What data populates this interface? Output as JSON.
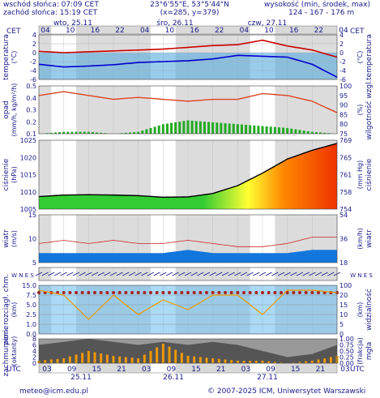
{
  "header": {
    "sunrise": "wschód słońca: 07:09 CET",
    "sunset": "zachód słońca: 15:19 CET",
    "coords": "23°6'55\"E, 53°5'44\"N",
    "grid": "(x=285, y=379)",
    "heights_label": "wysokość (min, środek, max)",
    "heights": "124 - 167 - 176 m"
  },
  "timezone_top": "CET",
  "timezone_top_right": "CET",
  "timezone_bottom": "UTC",
  "timezone_bottom_right": "UTC",
  "days_top": [
    "wto, 25.11",
    "śro, 26.11",
    "czw, 27.11"
  ],
  "hours_top": [
    "04",
    "10",
    "16",
    "22",
    "04",
    "10",
    "16",
    "22",
    "04",
    "10",
    "16",
    "22",
    "04"
  ],
  "hours_bottom": [
    "03",
    "09",
    "15",
    "21",
    "03",
    "09",
    "15",
    "21",
    "03",
    "09",
    "15",
    "21",
    "03"
  ],
  "days_bottom": [
    "25.11",
    "26.11",
    "27.11"
  ],
  "panels": {
    "temperature": {
      "left_label": "temperatura",
      "left_unit": "(°C)",
      "right_label": "temperatura",
      "right_unit": "(°C)",
      "left_ticks": [
        "4",
        "2",
        "0",
        "-2",
        "-4",
        "-6"
      ],
      "right_ticks": [
        "4",
        "2",
        "0",
        "-2",
        "-4",
        "-6"
      ]
    },
    "precipitation": {
      "left_label": "opad",
      "left_unit": "(mm/h, kg/m²/h)",
      "right_label": "wilgotność wzgl.",
      "right_unit": "(%)",
      "left_ticks": [
        "0.5",
        "0.4",
        "0.3",
        "0.2",
        "0.1"
      ],
      "right_ticks": [
        "100",
        "95",
        "90",
        "85",
        "80",
        "75"
      ]
    },
    "pressure": {
      "left_label": "ciśnienie",
      "left_unit": "(hPa)",
      "right_label": "ciśnienie",
      "right_unit": "(mm Hg)",
      "left_ticks": [
        "1025",
        "1020",
        "1015",
        "1010",
        "1005"
      ],
      "right_ticks": [
        "769",
        "765",
        "761",
        "758",
        "754"
      ]
    },
    "wind": {
      "left_label": "wiatr",
      "left_unit": "(m/s)",
      "right_label": "wiatr",
      "right_unit": "(km/h)",
      "left_ticks": [
        "15",
        "10",
        "5"
      ],
      "right_ticks": [
        "54",
        "36",
        "18"
      ]
    },
    "wind_dir": {
      "compass": "W N E S"
    },
    "visibility": {
      "left_label": "pion. rozciągł. chm.",
      "left_unit": "(km)",
      "right_label": "widzialność",
      "right_unit": "(km)",
      "left_ticks": [
        "15.0",
        "7.5",
        "5.0",
        "2.5",
        "1.0",
        "0.0"
      ],
      "right_ticks": [
        "100",
        "20",
        "15",
        "10",
        "5",
        "0"
      ]
    },
    "clouds": {
      "left_label": "zachmurzenie",
      "left_unit": "(oktanty)",
      "right_label": "mgła",
      "right_unit": "(frakcja)",
      "left_ticks": [
        "8",
        "6",
        "4",
        "2",
        "0"
      ],
      "right_ticks": [
        "1.00",
        "0.75",
        "0.50",
        "0.25",
        "0.00"
      ]
    }
  },
  "footer": {
    "email": "meteo@icm.edu.pl",
    "copyright": "© 2007-2025 ICM, Uniwersytet Warszawski"
  },
  "chart_data": {
    "type": "line",
    "time_hours_from_start": [
      0,
      6,
      12,
      18,
      24,
      30,
      36,
      42,
      48,
      54,
      60,
      66,
      72
    ],
    "temperature": {
      "series": [
        {
          "name": "temperatura",
          "color": "#cc0000",
          "values": [
            0.3,
            0.0,
            0.2,
            0.4,
            0.6,
            0.8,
            1.2,
            1.6,
            1.8,
            2.8,
            1.5,
            0.6,
            -1.0
          ]
        },
        {
          "name": "temperatura punktu rosy",
          "color": "#0000cc",
          "values": [
            -2.6,
            -3.2,
            -3.0,
            -2.7,
            -2.2,
            -2.0,
            -1.8,
            -1.4,
            -0.6,
            -0.8,
            -1.0,
            -2.6,
            -5.5
          ]
        }
      ],
      "ylim": [
        -6,
        4
      ]
    },
    "humidity": {
      "values": [
        95,
        97,
        95,
        93,
        94,
        93,
        92,
        93,
        93,
        96,
        95,
        92,
        86
      ],
      "ylim": [
        75,
        100
      ]
    },
    "precipitation_bars": {
      "values": [
        0.0,
        0.02,
        0.02,
        0.0,
        0.02,
        0.1,
        0.14,
        0.12,
        0.1,
        0.08,
        0.06,
        0.02,
        0.0
      ],
      "ylim": [
        0,
        0.5
      ]
    },
    "pressure": {
      "values": [
        1009.0,
        1009.5,
        1009.6,
        1009.5,
        1009.3,
        1008.8,
        1008.9,
        1010.0,
        1012.5,
        1016.5,
        1021.0,
        1023.8,
        1026.0
      ],
      "ylim": [
        1005,
        1027
      ]
    },
    "wind": {
      "gusts": [
        6,
        7,
        6,
        7,
        6,
        6,
        7,
        6,
        5,
        5,
        6,
        8,
        8
      ],
      "mean": [
        3,
        3,
        3,
        3,
        3,
        3,
        4,
        3,
        3,
        3,
        3,
        4,
        4
      ],
      "ylim": [
        0,
        15
      ]
    },
    "cloud_cover": {
      "values": [
        6,
        7,
        8,
        7,
        6,
        7,
        6,
        7,
        6,
        4,
        2,
        3,
        6
      ],
      "ylim": [
        0,
        8
      ]
    },
    "fog": {
      "values": [
        0.1,
        0.2,
        0.5,
        0.3,
        0.2,
        0.8,
        0.3,
        0.2,
        0.1,
        0.1,
        0.0,
        0.1,
        0.3
      ],
      "ylim": [
        0,
        1
      ]
    }
  }
}
